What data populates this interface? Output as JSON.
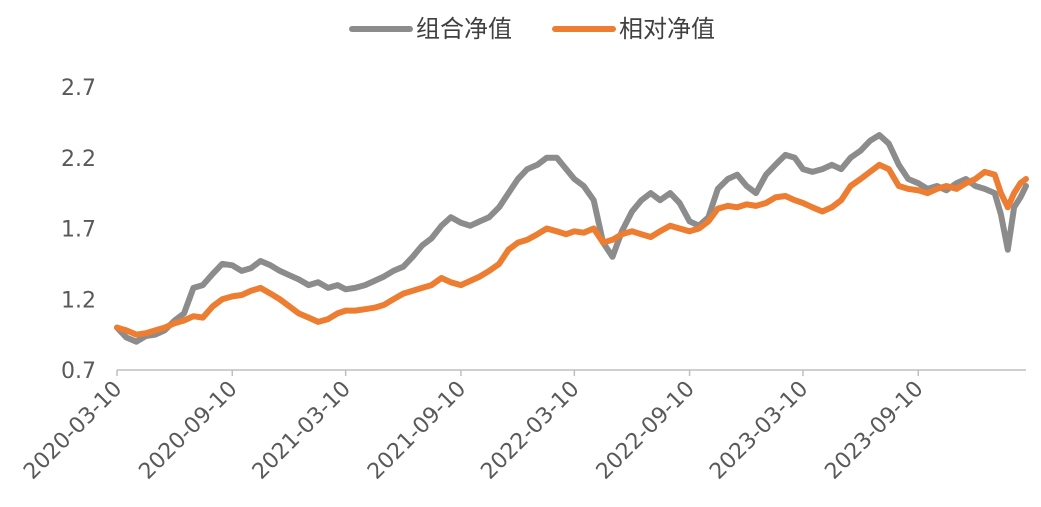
{
  "chart_data": {
    "type": "line",
    "title": "",
    "xlabel": "",
    "ylabel": "",
    "ylim": [
      0.7,
      2.7
    ],
    "y_ticks": [
      "0.7",
      "1.2",
      "1.7",
      "2.2",
      "2.7"
    ],
    "x_ticks": [
      "2020-03-10",
      "2020-09-10",
      "2021-03-10",
      "2021-09-10",
      "2022-03-10",
      "2022-09-10",
      "2023-03-10",
      "2023-09-10"
    ],
    "x_range": [
      "2020-03-10",
      "2024-02-29"
    ],
    "grid": false,
    "legend_position": "top-center",
    "series": [
      {
        "name": "组合净值",
        "color": "#8c8c8c",
        "points": [
          [
            "2020-03-10",
            1.0
          ],
          [
            "2020-03-25",
            0.93
          ],
          [
            "2020-04-10",
            0.9
          ],
          [
            "2020-04-25",
            0.94
          ],
          [
            "2020-05-10",
            0.95
          ],
          [
            "2020-05-25",
            0.98
          ],
          [
            "2020-06-10",
            1.05
          ],
          [
            "2020-06-25",
            1.1
          ],
          [
            "2020-07-10",
            1.28
          ],
          [
            "2020-07-25",
            1.3
          ],
          [
            "2020-08-10",
            1.38
          ],
          [
            "2020-08-25",
            1.45
          ],
          [
            "2020-09-10",
            1.44
          ],
          [
            "2020-09-25",
            1.4
          ],
          [
            "2020-10-10",
            1.42
          ],
          [
            "2020-10-25",
            1.47
          ],
          [
            "2020-11-10",
            1.44
          ],
          [
            "2020-11-25",
            1.4
          ],
          [
            "2020-12-10",
            1.37
          ],
          [
            "2020-12-25",
            1.34
          ],
          [
            "2021-01-10",
            1.3
          ],
          [
            "2021-01-25",
            1.32
          ],
          [
            "2021-02-10",
            1.28
          ],
          [
            "2021-02-25",
            1.3
          ],
          [
            "2021-03-10",
            1.27
          ],
          [
            "2021-03-25",
            1.28
          ],
          [
            "2021-04-10",
            1.3
          ],
          [
            "2021-04-25",
            1.33
          ],
          [
            "2021-05-10",
            1.36
          ],
          [
            "2021-05-25",
            1.4
          ],
          [
            "2021-06-10",
            1.43
          ],
          [
            "2021-06-25",
            1.5
          ],
          [
            "2021-07-10",
            1.58
          ],
          [
            "2021-07-25",
            1.63
          ],
          [
            "2021-08-10",
            1.72
          ],
          [
            "2021-08-25",
            1.78
          ],
          [
            "2021-09-10",
            1.74
          ],
          [
            "2021-09-25",
            1.72
          ],
          [
            "2021-10-10",
            1.75
          ],
          [
            "2021-10-25",
            1.78
          ],
          [
            "2021-11-10",
            1.85
          ],
          [
            "2021-11-25",
            1.95
          ],
          [
            "2021-12-10",
            2.05
          ],
          [
            "2021-12-25",
            2.12
          ],
          [
            "2022-01-10",
            2.15
          ],
          [
            "2022-01-25",
            2.2
          ],
          [
            "2022-02-10",
            2.2
          ],
          [
            "2022-02-25",
            2.12
          ],
          [
            "2022-03-10",
            2.05
          ],
          [
            "2022-03-25",
            2.0
          ],
          [
            "2022-04-10",
            1.9
          ],
          [
            "2022-04-25",
            1.6
          ],
          [
            "2022-05-10",
            1.5
          ],
          [
            "2022-05-25",
            1.68
          ],
          [
            "2022-06-10",
            1.82
          ],
          [
            "2022-06-25",
            1.9
          ],
          [
            "2022-07-10",
            1.95
          ],
          [
            "2022-07-25",
            1.9
          ],
          [
            "2022-08-10",
            1.95
          ],
          [
            "2022-08-25",
            1.88
          ],
          [
            "2022-09-10",
            1.75
          ],
          [
            "2022-09-25",
            1.72
          ],
          [
            "2022-10-10",
            1.78
          ],
          [
            "2022-10-25",
            1.98
          ],
          [
            "2022-11-10",
            2.05
          ],
          [
            "2022-11-25",
            2.08
          ],
          [
            "2022-12-10",
            2.0
          ],
          [
            "2022-12-25",
            1.95
          ],
          [
            "2023-01-10",
            2.08
          ],
          [
            "2023-01-25",
            2.15
          ],
          [
            "2023-02-10",
            2.22
          ],
          [
            "2023-02-25",
            2.2
          ],
          [
            "2023-03-10",
            2.12
          ],
          [
            "2023-03-25",
            2.1
          ],
          [
            "2023-04-10",
            2.12
          ],
          [
            "2023-04-25",
            2.15
          ],
          [
            "2023-05-10",
            2.12
          ],
          [
            "2023-05-25",
            2.2
          ],
          [
            "2023-06-10",
            2.25
          ],
          [
            "2023-06-25",
            2.32
          ],
          [
            "2023-07-10",
            2.36
          ],
          [
            "2023-07-25",
            2.3
          ],
          [
            "2023-08-10",
            2.15
          ],
          [
            "2023-08-25",
            2.05
          ],
          [
            "2023-09-10",
            2.02
          ],
          [
            "2023-09-25",
            1.98
          ],
          [
            "2023-10-10",
            2.0
          ],
          [
            "2023-10-25",
            1.97
          ],
          [
            "2023-11-10",
            2.02
          ],
          [
            "2023-11-25",
            2.05
          ],
          [
            "2023-12-10",
            2.0
          ],
          [
            "2023-12-25",
            1.98
          ],
          [
            "2024-01-10",
            1.95
          ],
          [
            "2024-01-20",
            1.8
          ],
          [
            "2024-01-31",
            1.55
          ],
          [
            "2024-02-10",
            1.85
          ],
          [
            "2024-02-20",
            1.92
          ],
          [
            "2024-02-29",
            2.0
          ]
        ]
      },
      {
        "name": "相对净值",
        "color": "#ed7d31",
        "points": [
          [
            "2020-03-10",
            1.0
          ],
          [
            "2020-03-25",
            0.98
          ],
          [
            "2020-04-10",
            0.95
          ],
          [
            "2020-04-25",
            0.96
          ],
          [
            "2020-05-10",
            0.98
          ],
          [
            "2020-05-25",
            1.0
          ],
          [
            "2020-06-10",
            1.03
          ],
          [
            "2020-06-25",
            1.05
          ],
          [
            "2020-07-10",
            1.08
          ],
          [
            "2020-07-25",
            1.07
          ],
          [
            "2020-08-10",
            1.15
          ],
          [
            "2020-08-25",
            1.2
          ],
          [
            "2020-09-10",
            1.22
          ],
          [
            "2020-09-25",
            1.23
          ],
          [
            "2020-10-10",
            1.26
          ],
          [
            "2020-10-25",
            1.28
          ],
          [
            "2020-11-10",
            1.24
          ],
          [
            "2020-11-25",
            1.2
          ],
          [
            "2020-12-10",
            1.15
          ],
          [
            "2020-12-25",
            1.1
          ],
          [
            "2021-01-10",
            1.07
          ],
          [
            "2021-01-25",
            1.04
          ],
          [
            "2021-02-10",
            1.06
          ],
          [
            "2021-02-25",
            1.1
          ],
          [
            "2021-03-10",
            1.12
          ],
          [
            "2021-03-25",
            1.12
          ],
          [
            "2021-04-10",
            1.13
          ],
          [
            "2021-04-25",
            1.14
          ],
          [
            "2021-05-10",
            1.16
          ],
          [
            "2021-05-25",
            1.2
          ],
          [
            "2021-06-10",
            1.24
          ],
          [
            "2021-06-25",
            1.26
          ],
          [
            "2021-07-10",
            1.28
          ],
          [
            "2021-07-25",
            1.3
          ],
          [
            "2021-08-10",
            1.35
          ],
          [
            "2021-08-25",
            1.32
          ],
          [
            "2021-09-10",
            1.3
          ],
          [
            "2021-09-25",
            1.33
          ],
          [
            "2021-10-10",
            1.36
          ],
          [
            "2021-10-25",
            1.4
          ],
          [
            "2021-11-10",
            1.45
          ],
          [
            "2021-11-25",
            1.55
          ],
          [
            "2021-12-10",
            1.6
          ],
          [
            "2021-12-25",
            1.62
          ],
          [
            "2022-01-10",
            1.66
          ],
          [
            "2022-01-25",
            1.7
          ],
          [
            "2022-02-10",
            1.68
          ],
          [
            "2022-02-25",
            1.66
          ],
          [
            "2022-03-10",
            1.68
          ],
          [
            "2022-03-25",
            1.67
          ],
          [
            "2022-04-10",
            1.7
          ],
          [
            "2022-04-25",
            1.6
          ],
          [
            "2022-05-10",
            1.62
          ],
          [
            "2022-05-25",
            1.66
          ],
          [
            "2022-06-10",
            1.68
          ],
          [
            "2022-06-25",
            1.66
          ],
          [
            "2022-07-10",
            1.64
          ],
          [
            "2022-07-25",
            1.68
          ],
          [
            "2022-08-10",
            1.72
          ],
          [
            "2022-08-25",
            1.7
          ],
          [
            "2022-09-10",
            1.68
          ],
          [
            "2022-09-25",
            1.7
          ],
          [
            "2022-10-10",
            1.75
          ],
          [
            "2022-10-25",
            1.84
          ],
          [
            "2022-11-10",
            1.86
          ],
          [
            "2022-11-25",
            1.85
          ],
          [
            "2022-12-10",
            1.87
          ],
          [
            "2022-12-25",
            1.86
          ],
          [
            "2023-01-10",
            1.88
          ],
          [
            "2023-01-25",
            1.92
          ],
          [
            "2023-02-10",
            1.93
          ],
          [
            "2023-02-25",
            1.9
          ],
          [
            "2023-03-10",
            1.88
          ],
          [
            "2023-03-25",
            1.85
          ],
          [
            "2023-04-10",
            1.82
          ],
          [
            "2023-04-25",
            1.85
          ],
          [
            "2023-05-10",
            1.9
          ],
          [
            "2023-05-25",
            2.0
          ],
          [
            "2023-06-10",
            2.05
          ],
          [
            "2023-06-25",
            2.1
          ],
          [
            "2023-07-10",
            2.15
          ],
          [
            "2023-07-25",
            2.12
          ],
          [
            "2023-08-10",
            2.0
          ],
          [
            "2023-08-25",
            1.98
          ],
          [
            "2023-09-10",
            1.97
          ],
          [
            "2023-09-25",
            1.95
          ],
          [
            "2023-10-10",
            1.98
          ],
          [
            "2023-10-25",
            2.0
          ],
          [
            "2023-11-10",
            1.98
          ],
          [
            "2023-11-25",
            2.02
          ],
          [
            "2023-12-10",
            2.05
          ],
          [
            "2023-12-25",
            2.1
          ],
          [
            "2024-01-10",
            2.08
          ],
          [
            "2024-01-20",
            1.95
          ],
          [
            "2024-01-31",
            1.85
          ],
          [
            "2024-02-10",
            1.95
          ],
          [
            "2024-02-20",
            2.02
          ],
          [
            "2024-02-29",
            2.05
          ]
        ]
      }
    ]
  }
}
